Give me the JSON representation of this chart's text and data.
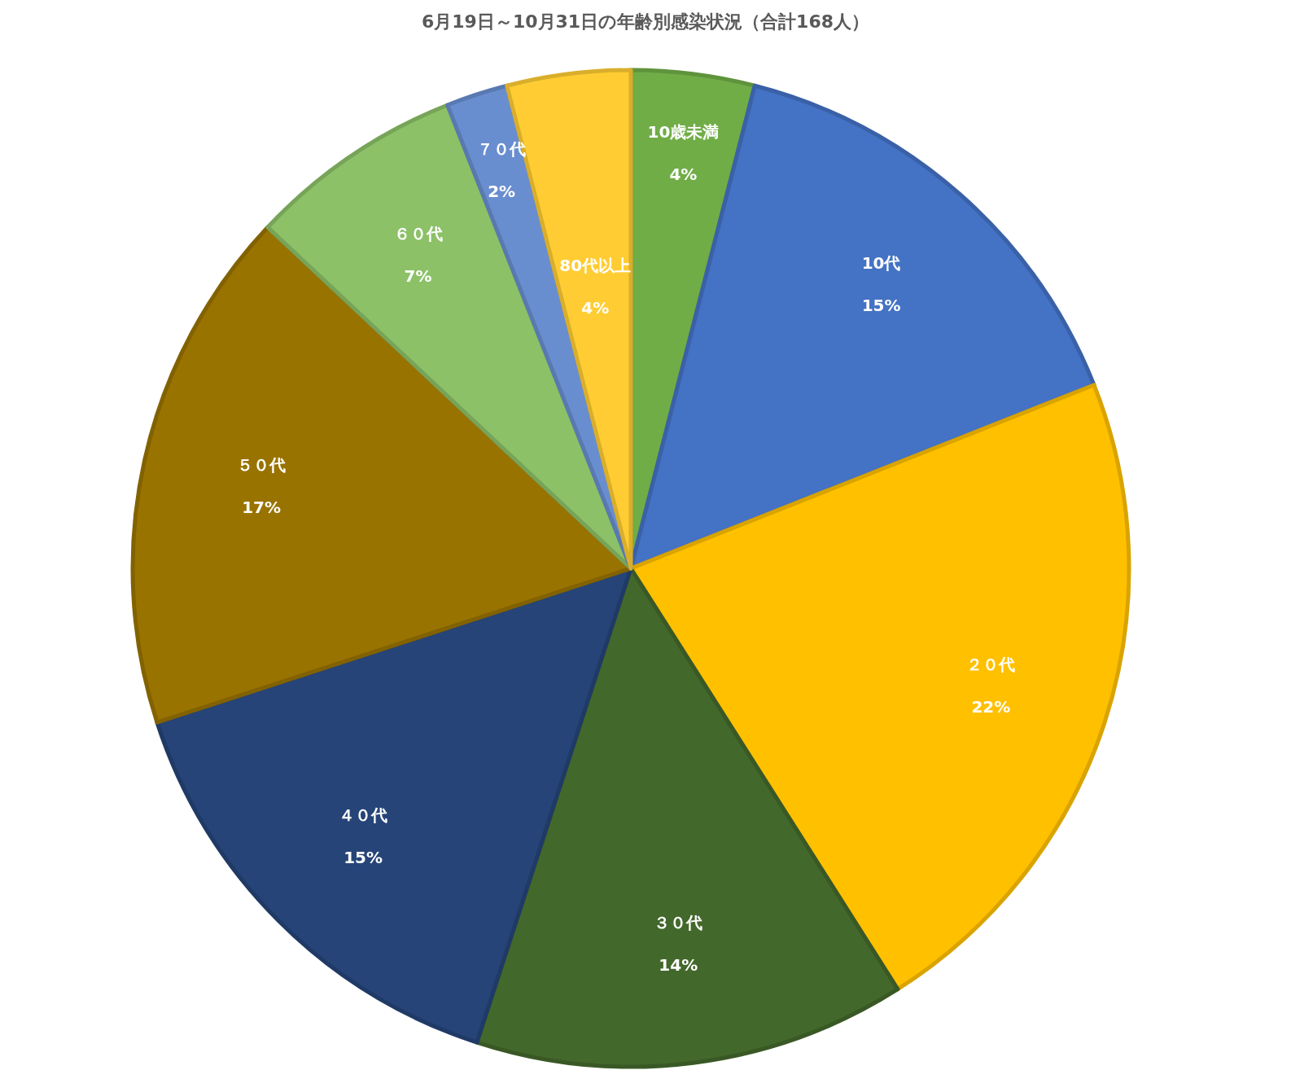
{
  "chart_data": {
    "type": "pie",
    "title": "6月19日～10月31日の年齢別感染状況（合計168人）",
    "categories": [
      "10歳未満",
      "10代",
      "２０代",
      "３０代",
      "４０代",
      "５０代",
      "６０代",
      "７０代",
      "80代以上"
    ],
    "values": [
      4,
      15,
      22,
      14,
      15,
      17,
      7,
      2,
      4
    ],
    "value_labels": [
      "4%",
      "15%",
      "22%",
      "14%",
      "15%",
      "17%",
      "7%",
      "2%",
      "4%"
    ],
    "colors": [
      "#70ad47",
      "#4472c4",
      "#ffc000",
      "#43682b",
      "#264478",
      "#997300",
      "#8cc168",
      "#698ed0",
      "#ffcd33"
    ],
    "legend": false
  }
}
